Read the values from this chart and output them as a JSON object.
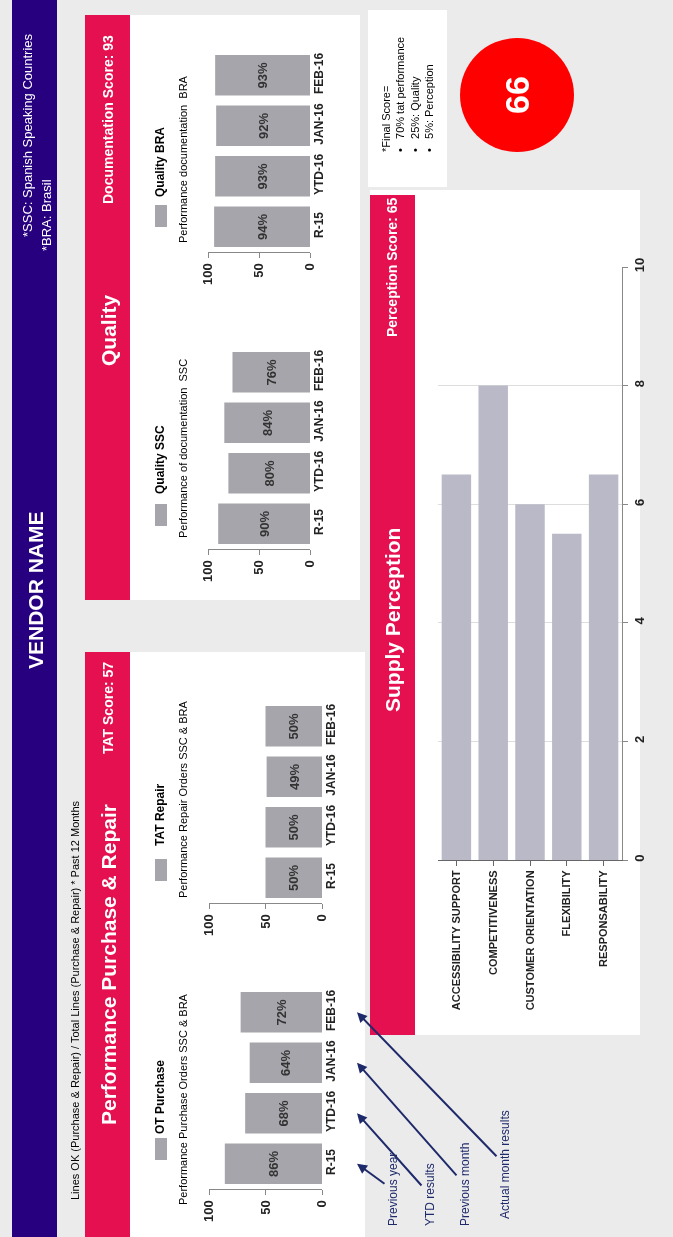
{
  "chart_data": [
    {
      "type": "other",
      "annotations": [
        "VENDOR NAME",
        "*SSC: Spanish Speaking Countries",
        "*BRA: Brasil",
        "Lines OK (Purchase & Repair) / Total Lines (Purchase & Repair) * Past 12 Months",
        "Performance Purchase & Repair",
        "TAT Score: 57",
        "Quality",
        "Documentation Score: 93",
        "*Final Score=\n•   70% tat performance\n•   25%: Quality\n•   5%: Perception",
        "66"
      ]
    },
    {
      "type": "bar",
      "orientation": "horizontal",
      "title": "Performance Purchase Orders SSC & BRA",
      "categories": [
        "FEB-16",
        "JAN-16",
        "YTD-16",
        "R-15"
      ],
      "series": [
        {
          "name": "OT Purchase",
          "color": "#a5a5ab",
          "values": [
            72,
            64,
            68,
            86
          ],
          "value_labels": [
            "72%",
            "64%",
            "68%",
            "86%"
          ]
        }
      ],
      "xlim": [
        100,
        0
      ],
      "xticks": [
        0,
        50,
        100
      ],
      "legend": "left",
      "annotations": [
        "Previous year",
        "YTD results",
        "Previous month",
        "Actual month results"
      ]
    },
    {
      "type": "bar",
      "orientation": "horizontal",
      "title": "Performance Repair Orders SSC & BRA",
      "categories": [
        "FEB-16",
        "JAN-16",
        "YTD-16",
        "R-15"
      ],
      "series": [
        {
          "name": "TAT Repair",
          "color": "#a5a5ab",
          "values": [
            50,
            49,
            50,
            50
          ],
          "value_labels": [
            "50%",
            "49%",
            "50%",
            "50%"
          ]
        }
      ],
      "xlim": [
        100,
        0
      ],
      "xticks": [
        0,
        50,
        100
      ],
      "legend": "left"
    },
    {
      "type": "bar",
      "orientation": "horizontal",
      "title": "Performance of documentation  SSC",
      "categories": [
        "FEB-16",
        "JAN-16",
        "YTD-16",
        "R-15"
      ],
      "series": [
        {
          "name": "Quality SSC",
          "color": "#a5a5ab",
          "values": [
            76,
            84,
            80,
            90
          ],
          "value_labels": [
            "76%",
            "84%",
            "80%",
            "90%"
          ]
        }
      ],
      "xlim": [
        100,
        0
      ],
      "xticks": [
        0,
        50,
        100
      ],
      "legend": "left"
    },
    {
      "type": "bar",
      "orientation": "horizontal",
      "title": "Performance documentation  BRA",
      "categories": [
        "FEB-16",
        "JAN-16",
        "YTD-16",
        "R-15"
      ],
      "series": [
        {
          "name": "Quality BRA",
          "color": "#a5a5ab",
          "values": [
            93,
            92,
            93,
            94
          ],
          "value_labels": [
            "93%",
            "92%",
            "93%",
            "94%"
          ]
        }
      ],
      "xlim": [
        100,
        0
      ],
      "xticks": [
        0,
        50,
        100
      ],
      "legend": "left"
    },
    {
      "type": "bar",
      "title": "Supply Perception",
      "subtitle": "Perception Score: 65",
      "categories": [
        "ACCESSIBILITY SUPPORT",
        "COMPETITIVENESS",
        "CUSTOMER ORIENTATION",
        "FLEXIBILITY",
        "RESPONSABILITY"
      ],
      "values": [
        6.5,
        8.0,
        6.0,
        5.5,
        6.5
      ],
      "color": "#b9b9c7",
      "ylim": [
        0,
        10
      ],
      "yticks": [
        0,
        2,
        4,
        6,
        8,
        10
      ],
      "grid": "y"
    }
  ]
}
